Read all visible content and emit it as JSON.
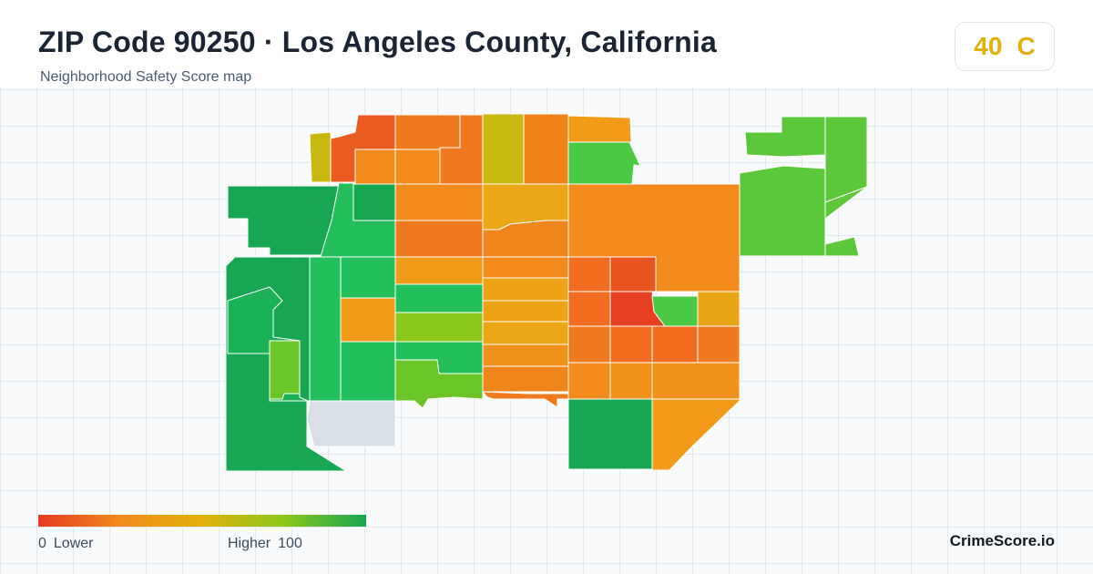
{
  "header": {
    "title": "ZIP Code 90250 · Los Angeles County, California",
    "subtitle": "Neighborhood Safety Score map"
  },
  "grade": {
    "score": "40",
    "letter": "C",
    "color": "#e0b10b"
  },
  "legend": {
    "min": "0",
    "min_label": "Lower",
    "max_label": "Higher",
    "max": "100",
    "colors": [
      "#e53b24",
      "#f28a1c",
      "#e2b10d",
      "#8cc71b",
      "#17a752"
    ]
  },
  "brand": "CrimeScore.io",
  "map": {
    "no_data_color": "#d9dfe6",
    "regions": [
      {
        "name": "n-yellow-sliver",
        "color": "#c8b80f"
      },
      {
        "name": "n-top-left",
        "color": "#ea5b20"
      },
      {
        "name": "n-top-mid",
        "color": "#f07a1e"
      },
      {
        "name": "n-top-yellow",
        "color": "#c8b80f"
      },
      {
        "name": "n-top-orange",
        "color": "#f0821c"
      },
      {
        "name": "n-top-right-orange",
        "color": "#f29b18"
      },
      {
        "name": "n-row2-a",
        "color": "#f28a1c"
      },
      {
        "name": "n-row2-b",
        "color": "#f07a1e"
      },
      {
        "name": "n-row2-c",
        "color": "#f28a1c"
      },
      {
        "name": "n-green-top",
        "color": "#4bc844"
      },
      {
        "name": "w-dark-green-block",
        "color": "#17a752"
      },
      {
        "name": "w-green-strip",
        "color": "#22bf5a"
      },
      {
        "name": "w-green-square",
        "color": "#17a752"
      },
      {
        "name": "c-orange-1",
        "color": "#f28a1c"
      },
      {
        "name": "c-orange-2",
        "color": "#eba715"
      },
      {
        "name": "c-orange-3",
        "color": "#f07a1e"
      },
      {
        "name": "c-orange-4",
        "color": "#f0851c"
      },
      {
        "name": "c-orange-5",
        "color": "#f29b18"
      },
      {
        "name": "c-orange-6",
        "color": "#f28a1c"
      },
      {
        "name": "c-orange-7",
        "color": "#eea316"
      },
      {
        "name": "big-east-orange",
        "color": "#f28a1c"
      },
      {
        "name": "ne-green-1",
        "color": "#5cc73b"
      },
      {
        "name": "ne-green-2",
        "color": "#5cc73b"
      },
      {
        "name": "ne-green-3",
        "color": "#5cc73b"
      },
      {
        "name": "ne-green-4",
        "color": "#5cc73b"
      },
      {
        "name": "ne-green-sliver",
        "color": "#5cc73b"
      },
      {
        "name": "w-big-green",
        "color": "#17a752"
      },
      {
        "name": "w-green-inner",
        "color": "#1bb155"
      },
      {
        "name": "w-lime-block",
        "color": "#6cc526"
      },
      {
        "name": "w-green-col",
        "color": "#22bf5a"
      },
      {
        "name": "w-green-b1",
        "color": "#22bf5a"
      },
      {
        "name": "w-orange-b2",
        "color": "#f29b18"
      },
      {
        "name": "w-green-b3",
        "color": "#22bf5a"
      },
      {
        "name": "m-green-a",
        "color": "#22bf5a"
      },
      {
        "name": "m-lime-b",
        "color": "#8cc71b"
      },
      {
        "name": "m-green-c",
        "color": "#22bf5a"
      },
      {
        "name": "m-lime-d",
        "color": "#6cc526"
      },
      {
        "name": "no-data",
        "color": "#d9dfe6"
      },
      {
        "name": "o-row-1",
        "color": "#eea316"
      },
      {
        "name": "o-row-2",
        "color": "#eba715"
      },
      {
        "name": "o-row-3",
        "color": "#f0921a"
      },
      {
        "name": "o-row-4",
        "color": "#f0851c"
      },
      {
        "name": "o-row-5",
        "color": "#f07a1e"
      },
      {
        "name": "e-red-1",
        "color": "#f26d1f"
      },
      {
        "name": "e-red-2",
        "color": "#e85320"
      },
      {
        "name": "e-red-dark",
        "color": "#e53f24"
      },
      {
        "name": "e-green-small",
        "color": "#4bc844"
      },
      {
        "name": "e-yellow",
        "color": "#eaa516"
      },
      {
        "name": "e-orange-row-a",
        "color": "#f26d1f"
      },
      {
        "name": "e-orange-row-b",
        "color": "#f07a1e"
      },
      {
        "name": "e-orange-row-c",
        "color": "#f26d1f"
      },
      {
        "name": "e-orange-row-d",
        "color": "#f26d1f"
      },
      {
        "name": "e-orange-row-e",
        "color": "#f07a1e"
      },
      {
        "name": "e-orange-row-f",
        "color": "#f28a1c"
      },
      {
        "name": "e-orange-row-g",
        "color": "#f0921a"
      },
      {
        "name": "e-orange-row-h",
        "color": "#f0921a"
      },
      {
        "name": "s-dark-green",
        "color": "#17a752"
      },
      {
        "name": "s-orange-tail",
        "color": "#f29b18"
      }
    ]
  }
}
